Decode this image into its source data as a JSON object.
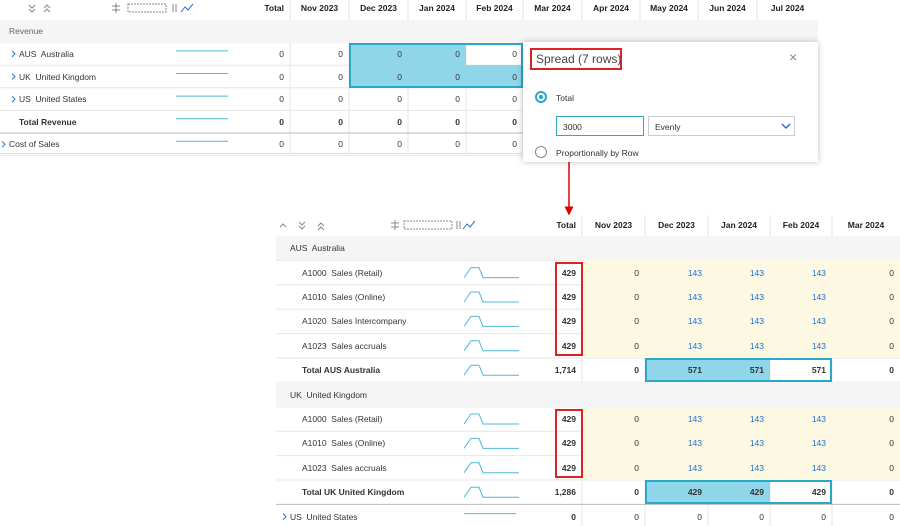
{
  "top_grid": {
    "columns": [
      "Total",
      "Nov 2023",
      "Dec 2023",
      "Jan 2024",
      "Feb 2024",
      "Mar 2024",
      "Apr 2024",
      "May 2024",
      "Jun 2024",
      "Jul 2024"
    ],
    "rows": [
      {
        "label": "Revenue",
        "kind": "group"
      },
      {
        "label": "AUS  Australia",
        "kind": "collapsed",
        "cells": [
          "0",
          "0",
          "0",
          "0",
          "0"
        ]
      },
      {
        "label": "UK  United Kingdom",
        "kind": "collapsed",
        "cells": [
          "0",
          "0",
          "0",
          "0",
          "0"
        ]
      },
      {
        "label": "US  United States",
        "kind": "collapsed",
        "cells": [
          "0",
          "0",
          "0",
          "0",
          "0"
        ]
      },
      {
        "label": "Total Revenue",
        "kind": "total",
        "cells": [
          "0",
          "0",
          "0",
          "0",
          "0"
        ]
      },
      {
        "label": "Cost of Sales",
        "kind": "collapsed-top",
        "cells": [
          "0",
          "0",
          "0",
          "0",
          "0"
        ]
      }
    ]
  },
  "spread_dialog": {
    "title": "Spread (7 rows)",
    "option_total": "Total",
    "amount": "3000",
    "method": "Evenly",
    "option_by_row": "Proportionally by Row"
  },
  "detail_grid": {
    "columns": [
      "Total",
      "Nov 2023",
      "Dec 2023",
      "Jan 2024",
      "Feb 2024",
      "Mar 2024"
    ],
    "rows": [
      {
        "label": "AUS  Australia",
        "kind": "group"
      },
      {
        "label": "A1000  Sales (Retail)",
        "kind": "row",
        "cells": [
          "429",
          "0",
          "143",
          "143",
          "143",
          "0"
        ]
      },
      {
        "label": "A1010  Sales (Online)",
        "kind": "row",
        "cells": [
          "429",
          "0",
          "143",
          "143",
          "143",
          "0"
        ]
      },
      {
        "label": "A1020  Sales Intercompany",
        "kind": "row",
        "cells": [
          "429",
          "0",
          "143",
          "143",
          "143",
          "0"
        ]
      },
      {
        "label": "A1023  Sales accruals",
        "kind": "row",
        "cells": [
          "429",
          "0",
          "143",
          "143",
          "143",
          "0"
        ]
      },
      {
        "label": "Total AUS Australia",
        "kind": "total",
        "cells": [
          "1,714",
          "0",
          "571",
          "571",
          "571",
          "0"
        ]
      },
      {
        "label": "UK  United Kingdom",
        "kind": "group"
      },
      {
        "label": "A1000  Sales (Retail)",
        "kind": "row",
        "cells": [
          "429",
          "0",
          "143",
          "143",
          "143",
          "0"
        ]
      },
      {
        "label": "A1010  Sales (Online)",
        "kind": "row",
        "cells": [
          "429",
          "0",
          "143",
          "143",
          "143",
          "0"
        ]
      },
      {
        "label": "A1023  Sales accruals",
        "kind": "row",
        "cells": [
          "429",
          "0",
          "143",
          "143",
          "143",
          "0"
        ]
      },
      {
        "label": "Total UK United Kingdom",
        "kind": "total",
        "cells": [
          "1,286",
          "0",
          "429",
          "429",
          "429",
          "0"
        ]
      },
      {
        "label": "US  United States",
        "kind": "collapsed",
        "cells": [
          "0",
          "0",
          "0",
          "0",
          "0",
          "0"
        ]
      }
    ]
  }
}
